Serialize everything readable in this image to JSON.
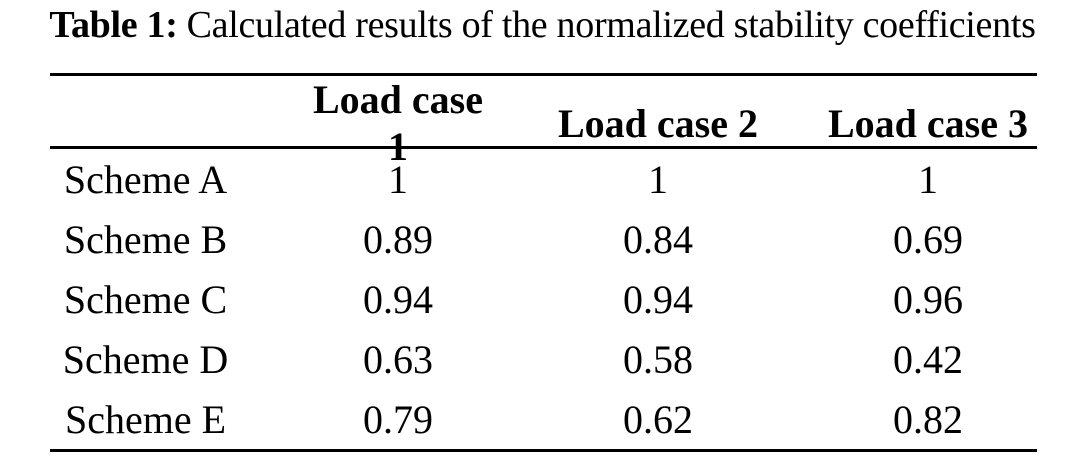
{
  "caption": {
    "label": "Table 1:",
    "text": "Calculated results of the normalized stability coefficients"
  },
  "table": {
    "header": [
      "",
      "Load case 1",
      "Load case 2",
      "Load case 3"
    ],
    "rows": [
      {
        "label": "Scheme A",
        "values": [
          "1",
          "1",
          "1"
        ]
      },
      {
        "label": "Scheme B",
        "values": [
          "0.89",
          "0.84",
          "0.69"
        ]
      },
      {
        "label": "Scheme C",
        "values": [
          "0.94",
          "0.94",
          "0.96"
        ]
      },
      {
        "label": "Scheme D",
        "values": [
          "0.63",
          "0.58",
          "0.42"
        ]
      },
      {
        "label": "Scheme E",
        "values": [
          "0.79",
          "0.62",
          "0.82"
        ]
      }
    ]
  },
  "chart_data": {
    "type": "table",
    "title": "Table 1: Calculated results of the normalized stability coefficients",
    "columns": [
      "",
      "Load case 1",
      "Load case 2",
      "Load case 3"
    ],
    "rows": [
      [
        "Scheme A",
        1,
        1,
        1
      ],
      [
        "Scheme B",
        0.89,
        0.84,
        0.69
      ],
      [
        "Scheme C",
        0.94,
        0.94,
        0.96
      ],
      [
        "Scheme D",
        0.63,
        0.58,
        0.42
      ],
      [
        "Scheme E",
        0.79,
        0.62,
        0.82
      ]
    ]
  },
  "colors": {
    "text": "#000000",
    "background": "#ffffff",
    "rule": "#000000"
  }
}
